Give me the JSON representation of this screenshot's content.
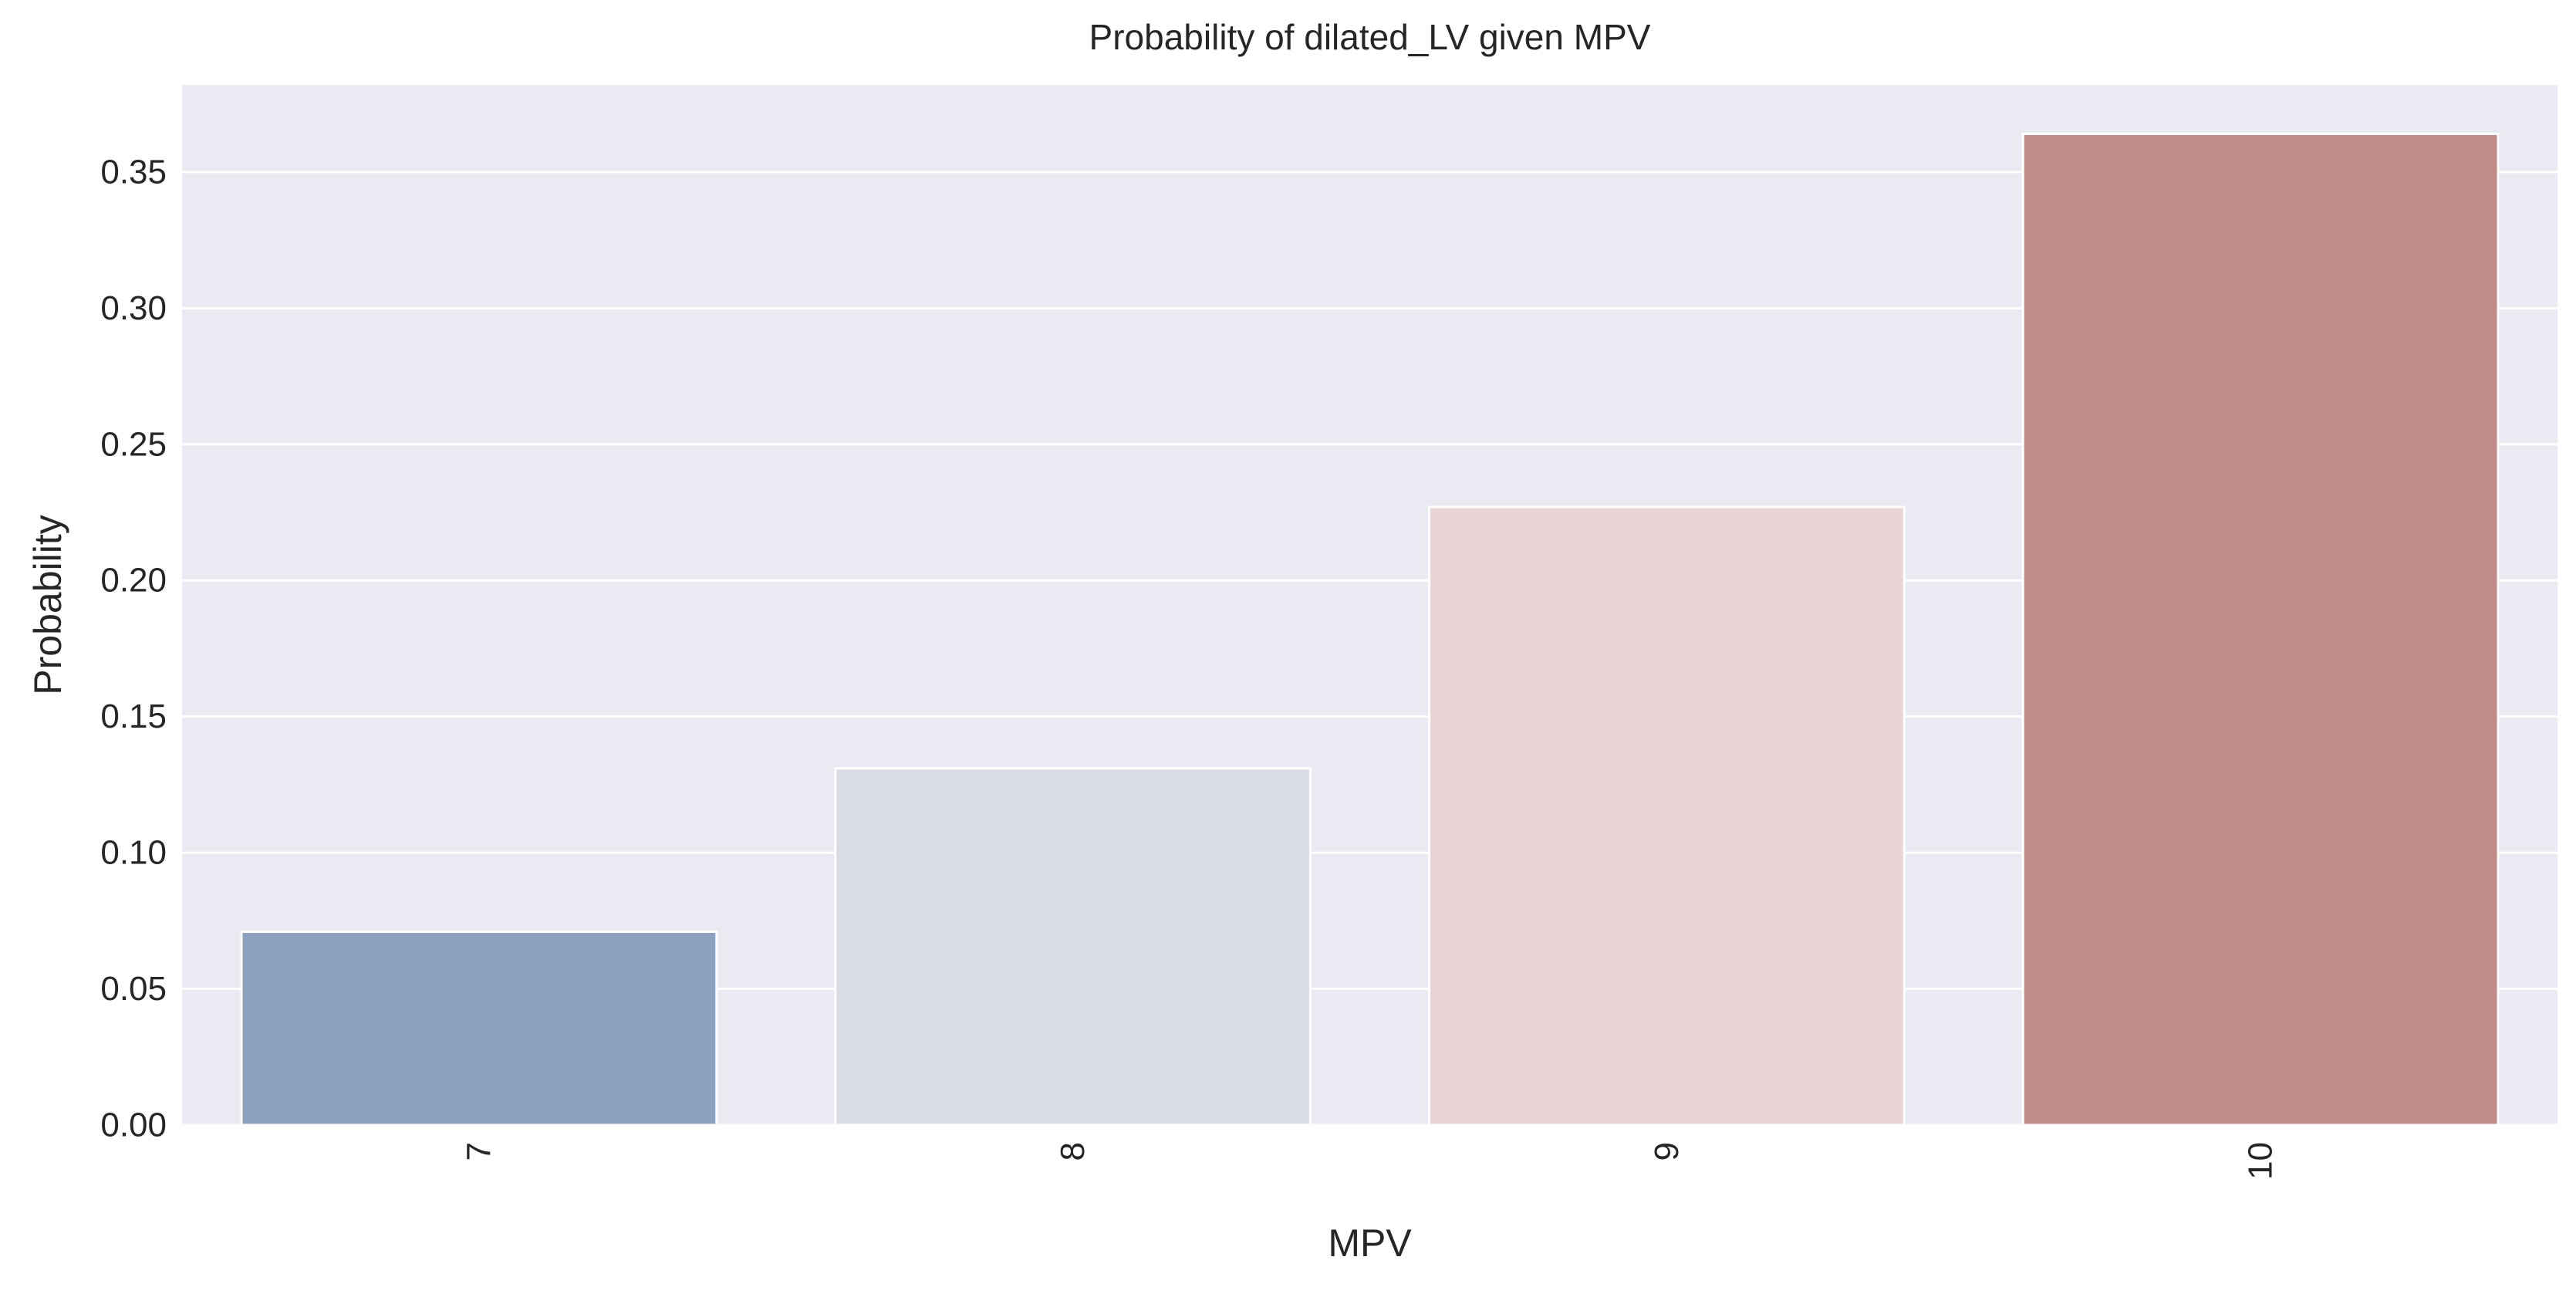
{
  "chart_data": {
    "type": "bar",
    "title": "Probability of dilated_LV given MPV",
    "xlabel": "MPV",
    "ylabel": "Probability",
    "categories": [
      "7",
      "8",
      "9",
      "10"
    ],
    "values": [
      0.071,
      0.131,
      0.227,
      0.364
    ],
    "bar_colors": [
      "#8da2be",
      "#d9dce4",
      "#e9d5d5",
      "#c08c88"
    ],
    "ylim": [
      0,
      0.382
    ],
    "yticks": [
      0.0,
      0.05,
      0.1,
      0.15,
      0.2,
      0.25,
      0.3,
      0.35
    ],
    "ytick_labels": [
      "0.00",
      "0.05",
      "0.10",
      "0.15",
      "0.20",
      "0.25",
      "0.30",
      "0.35"
    ],
    "xtick_rotation": "vertical",
    "grid": true,
    "background_color": "#eaeaf2",
    "grid_color": "#ffffff"
  }
}
